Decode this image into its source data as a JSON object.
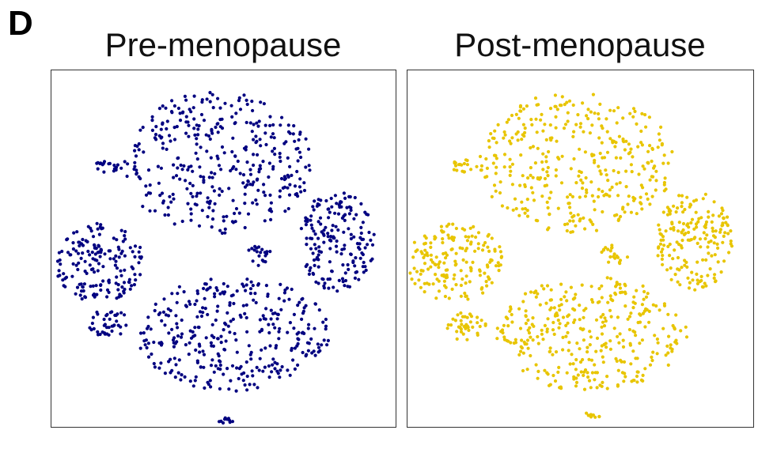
{
  "figure": {
    "panel_letter": "D"
  },
  "chart_data": [
    {
      "type": "scatter",
      "title": "Pre-menopause",
      "color": "#000080",
      "xlabel": "",
      "ylabel": "",
      "axes_visible": false,
      "grid": false,
      "xlim": [
        0,
        100
      ],
      "ylim": [
        0,
        100
      ],
      "clusters": [
        {
          "cx": 48,
          "cy": 74,
          "rx": 28,
          "ry": 20
        },
        {
          "cx": 83,
          "cy": 52,
          "rx": 11,
          "ry": 14
        },
        {
          "cx": 14,
          "cy": 46,
          "rx": 13,
          "ry": 11
        },
        {
          "cx": 53,
          "cy": 26,
          "rx": 28,
          "ry": 16
        },
        {
          "cx": 17,
          "cy": 29,
          "rx": 6,
          "ry": 4
        },
        {
          "cx": 17,
          "cy": 73,
          "rx": 4,
          "ry": 2
        },
        {
          "cx": 51,
          "cy": 2,
          "rx": 3,
          "ry": 1
        },
        {
          "cx": 60,
          "cy": 48,
          "rx": 4,
          "ry": 3
        }
      ]
    },
    {
      "type": "scatter",
      "title": "Post-menopause",
      "color": "#E8C500",
      "xlabel": "",
      "ylabel": "",
      "axes_visible": false,
      "grid": false,
      "xlim": [
        0,
        100
      ],
      "ylim": [
        0,
        100
      ],
      "clusters": [
        {
          "cx": 49,
          "cy": 74,
          "rx": 28,
          "ry": 20
        },
        {
          "cx": 83,
          "cy": 52,
          "rx": 11,
          "ry": 14
        },
        {
          "cx": 14,
          "cy": 46,
          "rx": 14,
          "ry": 11
        },
        {
          "cx": 53,
          "cy": 26,
          "rx": 28,
          "ry": 16
        },
        {
          "cx": 17,
          "cy": 28,
          "rx": 6,
          "ry": 4
        },
        {
          "cx": 17,
          "cy": 73,
          "rx": 4,
          "ry": 2
        },
        {
          "cx": 53,
          "cy": 3,
          "rx": 3,
          "ry": 1
        },
        {
          "cx": 60,
          "cy": 48,
          "rx": 4,
          "ry": 3
        }
      ]
    }
  ]
}
